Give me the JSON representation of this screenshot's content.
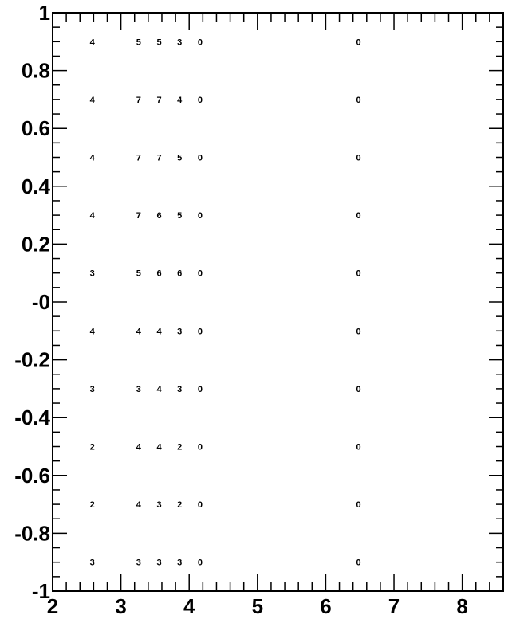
{
  "chart_data": {
    "type": "table",
    "title": "",
    "xlabel": "",
    "ylabel": "",
    "xlim": [
      2,
      8.6
    ],
    "ylim": [
      -1,
      1
    ],
    "x_major_ticks": [
      2,
      3,
      4,
      5,
      6,
      7,
      8
    ],
    "x_tick_labels": [
      "2",
      "3",
      "4",
      "5",
      "6",
      "7",
      "8"
    ],
    "x_minor_step": 0.2,
    "y_major_ticks": [
      1,
      0.8,
      0.6,
      0.4,
      0.2,
      0,
      -0.2,
      -0.4,
      -0.6,
      -0.8,
      -1
    ],
    "y_tick_labels": [
      "1",
      "0.8",
      "0.6",
      "0.4",
      "0.2",
      "-0",
      "-0.2",
      "-0.4",
      "-0.6",
      "-0.8",
      "-1"
    ],
    "y_minor_step": 0.05,
    "grid": false,
    "columns_x": [
      2.58,
      3.26,
      3.56,
      3.86,
      4.16,
      6.48
    ],
    "rows": [
      {
        "y": 0.9,
        "values": [
          "4",
          "5",
          "5",
          "3",
          "0",
          "0"
        ]
      },
      {
        "y": 0.7,
        "values": [
          "4",
          "7",
          "7",
          "4",
          "0",
          "0"
        ]
      },
      {
        "y": 0.5,
        "values": [
          "4",
          "7",
          "7",
          "5",
          "0",
          "0"
        ]
      },
      {
        "y": 0.3,
        "values": [
          "4",
          "7",
          "6",
          "5",
          "0",
          "0"
        ]
      },
      {
        "y": 0.1,
        "values": [
          "3",
          "5",
          "6",
          "6",
          "0",
          "0"
        ]
      },
      {
        "y": -0.1,
        "values": [
          "4",
          "4",
          "4",
          "3",
          "0",
          "0"
        ]
      },
      {
        "y": -0.3,
        "values": [
          "3",
          "3",
          "4",
          "3",
          "0",
          "0"
        ]
      },
      {
        "y": -0.5,
        "values": [
          "2",
          "4",
          "4",
          "2",
          "0",
          "0"
        ]
      },
      {
        "y": -0.7,
        "values": [
          "2",
          "4",
          "3",
          "2",
          "0",
          "0"
        ]
      },
      {
        "y": -0.9,
        "values": [
          "3",
          "3",
          "3",
          "3",
          "0",
          "0"
        ]
      }
    ]
  }
}
